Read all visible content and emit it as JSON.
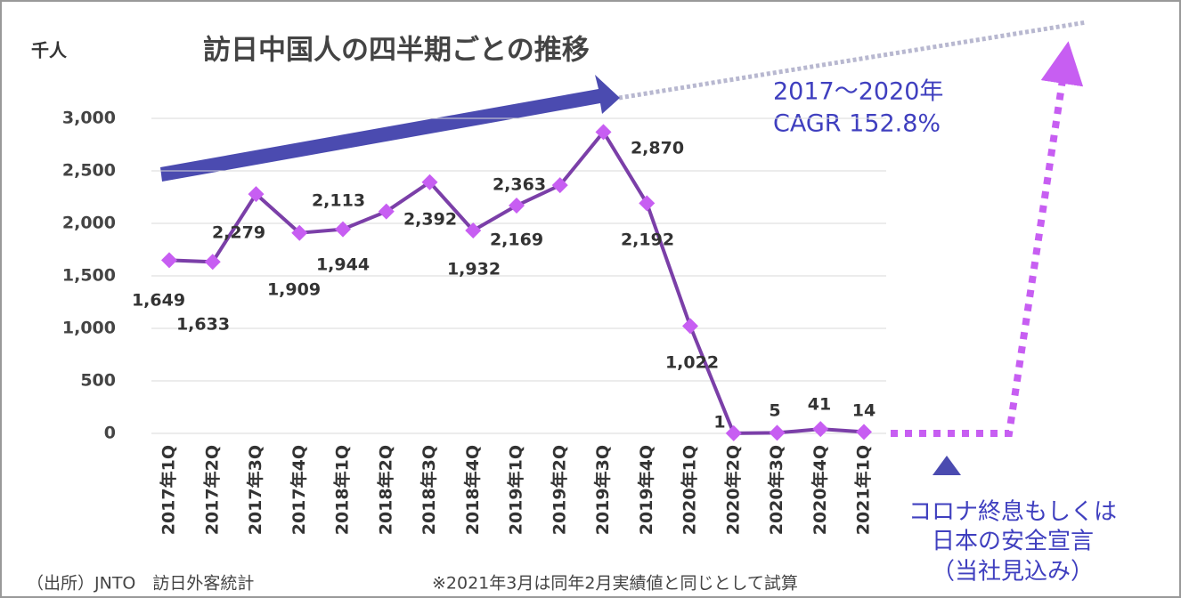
{
  "chart_data": {
    "type": "line",
    "title": "訪日中国人の四半期ごとの推移",
    "y_label": "千人",
    "annotations": [
      "2017〜2020年",
      "CAGR 152.8%",
      "コロナ終息もしくは",
      "日本の安全宣言",
      "（当社見込み）"
    ],
    "source": "（出所）JNTO　訪日外客統計",
    "note": "※2021年3月は同年2月実績値と同じとして試算",
    "categories": [
      "2017年1Q",
      "2017年2Q",
      "2017年3Q",
      "2017年4Q",
      "2018年1Q",
      "2018年2Q",
      "2018年3Q",
      "2018年4Q",
      "2019年1Q",
      "2019年2Q",
      "2019年3Q",
      "2019年4Q",
      "2020年1Q",
      "2020年2Q",
      "2020年3Q",
      "2020年4Q",
      "2021年1Q"
    ],
    "series": [
      {
        "name": "訪日中国人",
        "color": "#7b3fa8",
        "marker_color": "#c75ef2",
        "values": [
          1649,
          1633,
          2279,
          1909,
          1944,
          2113,
          2392,
          1932,
          2169,
          2363,
          2870,
          2192,
          1022,
          1,
          5,
          41,
          14
        ],
        "value_labels": [
          "1,649",
          "1,633",
          "2,279",
          "1,909",
          "1,944",
          "2,113",
          "2,392",
          "1,932",
          "2,169",
          "2,363",
          "2,870",
          "2,192",
          "1,022",
          "1",
          "5",
          "41",
          "14"
        ]
      }
    ],
    "ylim": [
      0,
      3000
    ],
    "yticks": [
      0,
      500,
      {
        "value": 1000,
        "label": "1,000"
      },
      {
        "value": 1500,
        "label": "1,500"
      },
      {
        "value": 2000,
        "label": "2,000"
      },
      {
        "value": 2500,
        "label": "2,500"
      },
      {
        "value": 3000,
        "label": "3,000"
      }
    ],
    "grid": true
  }
}
